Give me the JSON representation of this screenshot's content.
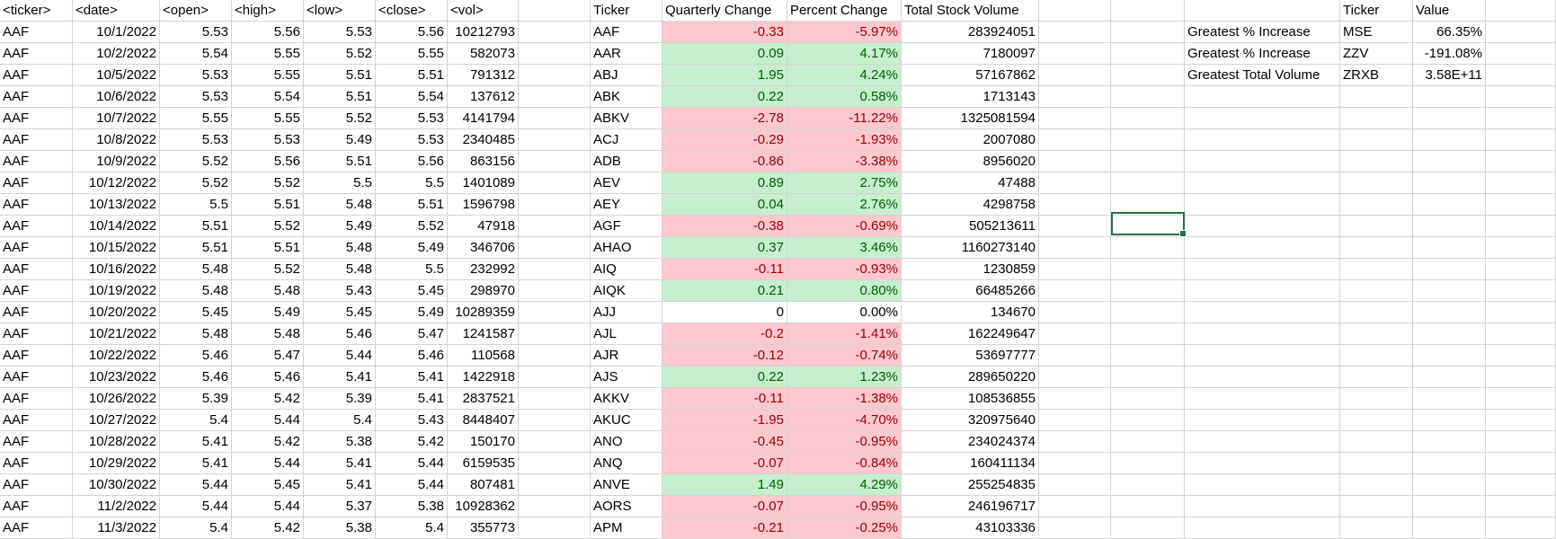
{
  "raw_headers": [
    "<ticker>",
    "<date>",
    "<open>",
    "<high>",
    "<low>",
    "<close>",
    "<vol>"
  ],
  "raw_rows": [
    [
      "AAF",
      "10/1/2022",
      "5.53",
      "5.56",
      "5.53",
      "5.56",
      "10212793"
    ],
    [
      "AAF",
      "10/2/2022",
      "5.54",
      "5.55",
      "5.52",
      "5.55",
      "582073"
    ],
    [
      "AAF",
      "10/5/2022",
      "5.53",
      "5.55",
      "5.51",
      "5.51",
      "791312"
    ],
    [
      "AAF",
      "10/6/2022",
      "5.53",
      "5.54",
      "5.51",
      "5.54",
      "137612"
    ],
    [
      "AAF",
      "10/7/2022",
      "5.55",
      "5.55",
      "5.52",
      "5.53",
      "4141794"
    ],
    [
      "AAF",
      "10/8/2022",
      "5.53",
      "5.53",
      "5.49",
      "5.53",
      "2340485"
    ],
    [
      "AAF",
      "10/9/2022",
      "5.52",
      "5.56",
      "5.51",
      "5.56",
      "863156"
    ],
    [
      "AAF",
      "10/12/2022",
      "5.52",
      "5.52",
      "5.5",
      "5.5",
      "1401089"
    ],
    [
      "AAF",
      "10/13/2022",
      "5.5",
      "5.51",
      "5.48",
      "5.51",
      "1596798"
    ],
    [
      "AAF",
      "10/14/2022",
      "5.51",
      "5.52",
      "5.49",
      "5.52",
      "47918"
    ],
    [
      "AAF",
      "10/15/2022",
      "5.51",
      "5.51",
      "5.48",
      "5.49",
      "346706"
    ],
    [
      "AAF",
      "10/16/2022",
      "5.48",
      "5.52",
      "5.48",
      "5.5",
      "232992"
    ],
    [
      "AAF",
      "10/19/2022",
      "5.48",
      "5.48",
      "5.43",
      "5.45",
      "298970"
    ],
    [
      "AAF",
      "10/20/2022",
      "5.45",
      "5.49",
      "5.45",
      "5.49",
      "10289359"
    ],
    [
      "AAF",
      "10/21/2022",
      "5.48",
      "5.48",
      "5.46",
      "5.47",
      "1241587"
    ],
    [
      "AAF",
      "10/22/2022",
      "5.46",
      "5.47",
      "5.44",
      "5.46",
      "110568"
    ],
    [
      "AAF",
      "10/23/2022",
      "5.46",
      "5.46",
      "5.41",
      "5.41",
      "1422918"
    ],
    [
      "AAF",
      "10/26/2022",
      "5.39",
      "5.42",
      "5.39",
      "5.41",
      "2837521"
    ],
    [
      "AAF",
      "10/27/2022",
      "5.4",
      "5.44",
      "5.4",
      "5.43",
      "8448407"
    ],
    [
      "AAF",
      "10/28/2022",
      "5.41",
      "5.42",
      "5.38",
      "5.42",
      "150170"
    ],
    [
      "AAF",
      "10/29/2022",
      "5.41",
      "5.44",
      "5.41",
      "5.44",
      "6159535"
    ],
    [
      "AAF",
      "10/30/2022",
      "5.44",
      "5.45",
      "5.41",
      "5.44",
      "807481"
    ],
    [
      "AAF",
      "11/2/2022",
      "5.44",
      "5.44",
      "5.37",
      "5.38",
      "10928362"
    ],
    [
      "AAF",
      "11/3/2022",
      "5.4",
      "5.42",
      "5.38",
      "5.4",
      "355773"
    ]
  ],
  "summary_headers": [
    "Ticker",
    "Quarterly Change",
    "Percent Change",
    "Total Stock Volume"
  ],
  "summary_rows": [
    {
      "ticker": "AAF",
      "change": "-0.33",
      "percent": "-5.97%",
      "volume": "283924051",
      "status": "neg"
    },
    {
      "ticker": "AAR",
      "change": "0.09",
      "percent": "4.17%",
      "volume": "7180097",
      "status": "pos"
    },
    {
      "ticker": "ABJ",
      "change": "1.95",
      "percent": "4.24%",
      "volume": "57167862",
      "status": "pos"
    },
    {
      "ticker": "ABK",
      "change": "0.22",
      "percent": "0.58%",
      "volume": "1713143",
      "status": "pos"
    },
    {
      "ticker": "ABKV",
      "change": "-2.78",
      "percent": "-11.22%",
      "volume": "1325081594",
      "status": "neg"
    },
    {
      "ticker": "ACJ",
      "change": "-0.29",
      "percent": "-1.93%",
      "volume": "2007080",
      "status": "neg"
    },
    {
      "ticker": "ADB",
      "change": "-0.86",
      "percent": "-3.38%",
      "volume": "8956020",
      "status": "neg"
    },
    {
      "ticker": "AEV",
      "change": "0.89",
      "percent": "2.75%",
      "volume": "47488",
      "status": "pos"
    },
    {
      "ticker": "AEY",
      "change": "0.04",
      "percent": "2.76%",
      "volume": "4298758",
      "status": "pos"
    },
    {
      "ticker": "AGF",
      "change": "-0.38",
      "percent": "-0.69%",
      "volume": "505213611",
      "status": "neg"
    },
    {
      "ticker": "AHAO",
      "change": "0.37",
      "percent": "3.46%",
      "volume": "1160273140",
      "status": "pos"
    },
    {
      "ticker": "AIQ",
      "change": "-0.11",
      "percent": "-0.93%",
      "volume": "1230859",
      "status": "neg"
    },
    {
      "ticker": "AIQK",
      "change": "0.21",
      "percent": "0.80%",
      "volume": "66485266",
      "status": "pos"
    },
    {
      "ticker": "AJJ",
      "change": "0",
      "percent": "0.00%",
      "volume": "134670",
      "status": "zero"
    },
    {
      "ticker": "AJL",
      "change": "-0.2",
      "percent": "-1.41%",
      "volume": "162249647",
      "status": "neg"
    },
    {
      "ticker": "AJR",
      "change": "-0.12",
      "percent": "-0.74%",
      "volume": "53697777",
      "status": "neg"
    },
    {
      "ticker": "AJS",
      "change": "0.22",
      "percent": "1.23%",
      "volume": "289650220",
      "status": "pos"
    },
    {
      "ticker": "AKKV",
      "change": "-0.11",
      "percent": "-1.38%",
      "volume": "108536855",
      "status": "neg"
    },
    {
      "ticker": "AKUC",
      "change": "-1.95",
      "percent": "-4.70%",
      "volume": "320975640",
      "status": "neg"
    },
    {
      "ticker": "ANO",
      "change": "-0.45",
      "percent": "-0.95%",
      "volume": "234024374",
      "status": "neg"
    },
    {
      "ticker": "ANQ",
      "change": "-0.07",
      "percent": "-0.84%",
      "volume": "160411134",
      "status": "neg"
    },
    {
      "ticker": "ANVE",
      "change": "1.49",
      "percent": "4.29%",
      "volume": "255254835",
      "status": "pos"
    },
    {
      "ticker": "AORS",
      "change": "-0.07",
      "percent": "-0.95%",
      "volume": "246196717",
      "status": "neg"
    },
    {
      "ticker": "APM",
      "change": "-0.21",
      "percent": "-0.25%",
      "volume": "43103336",
      "status": "neg"
    }
  ],
  "stats_headers": [
    "Ticker",
    "Value"
  ],
  "stats_rows": [
    {
      "label": "Greatest % Increase",
      "ticker": "MSE",
      "value": "66.35%"
    },
    {
      "label": "Greatest % Increase",
      "ticker": "ZZV",
      "value": "-191.08%"
    },
    {
      "label": "Greatest Total Volume",
      "ticker": "ZRXB",
      "value": "3.58E+11"
    }
  ],
  "colors": {
    "positive_fill": "#c6efce",
    "positive_text": "#006100",
    "negative_fill": "#ffc7ce",
    "negative_text": "#9c0006",
    "selection_border": "#217346",
    "gridline": "#d4d4d4"
  }
}
